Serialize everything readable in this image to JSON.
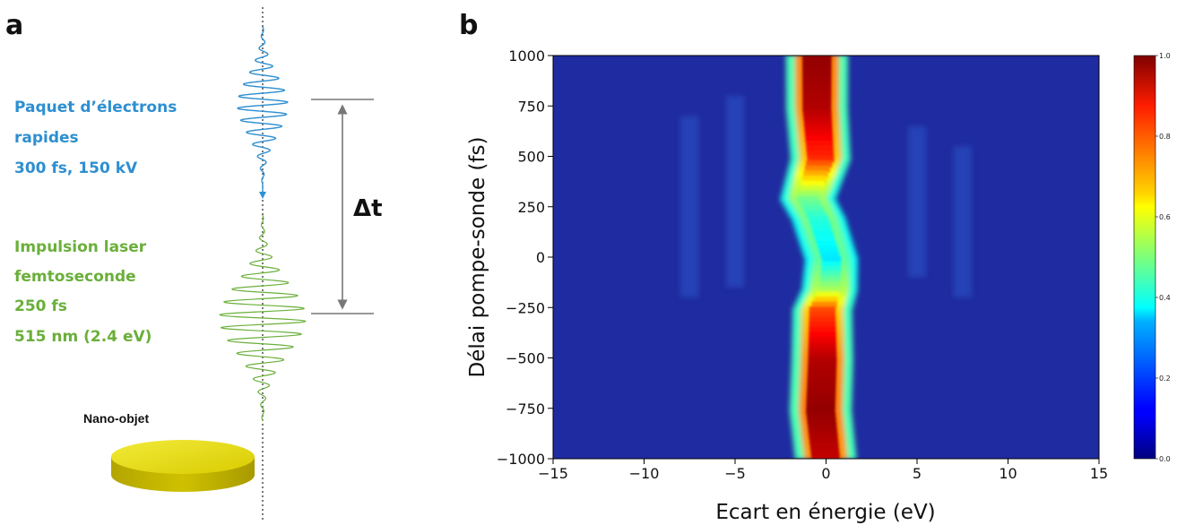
{
  "panel_a": {
    "letter": "a",
    "electron_label": [
      "Paquet d’électrons",
      "rapides",
      "300 fs, 150 kV"
    ],
    "laser_label": [
      "Impulsion laser",
      "femtoseconde",
      "250 fs",
      "515 nm (2.4 eV)"
    ],
    "delay_label": "Δt",
    "object_label": "Nano-objet",
    "colors": {
      "electron": "#2e8fd0",
      "laser": "#6aaf3a",
      "disk": "#e0d400",
      "arrow": "#777777"
    }
  },
  "panel_b": {
    "letter": "b"
  },
  "chart_data": {
    "type": "heatmap",
    "title": "",
    "xlabel": "Ecart en énergie (eV)",
    "ylabel": "Délai pompe-sonde (fs)",
    "xlim": [
      -15,
      15
    ],
    "ylim": [
      -1000,
      1000
    ],
    "xticks": [
      -15,
      -10,
      -5,
      0,
      5,
      10,
      15
    ],
    "xtick_labels": [
      "−15",
      "−10",
      "−5",
      "0",
      "5",
      "10",
      "15"
    ],
    "yticks": [
      1000,
      750,
      500,
      250,
      0,
      -250,
      -500,
      -750,
      -1000
    ],
    "ytick_labels": [
      "1000",
      "750",
      "500",
      "250",
      "0",
      "−250",
      "−500",
      "−750",
      "−1000"
    ],
    "colormap": "jet",
    "colorbar": {
      "range": [
        0.0,
        1.0
      ],
      "ticks": [
        1.0,
        0.8,
        0.6,
        0.4,
        0.2,
        0.0
      ],
      "tick_labels": [
        "1.0",
        "0.8",
        "0.6",
        "0.4",
        "0.2",
        "0.0"
      ]
    },
    "ridge_profile": {
      "delay_fs": [
        1000,
        750,
        500,
        300,
        200,
        0,
        -150,
        -250,
        -500,
        -750,
        -1000
      ],
      "center_eV": [
        -0.5,
        -0.5,
        -0.3,
        -1.0,
        -0.4,
        0.3,
        0.2,
        -0.2,
        -0.2,
        -0.3,
        0.0
      ],
      "peak_intensity": [
        1.0,
        0.97,
        0.85,
        0.5,
        0.42,
        0.36,
        0.55,
        0.82,
        0.97,
        1.0,
        0.95
      ]
    }
  }
}
